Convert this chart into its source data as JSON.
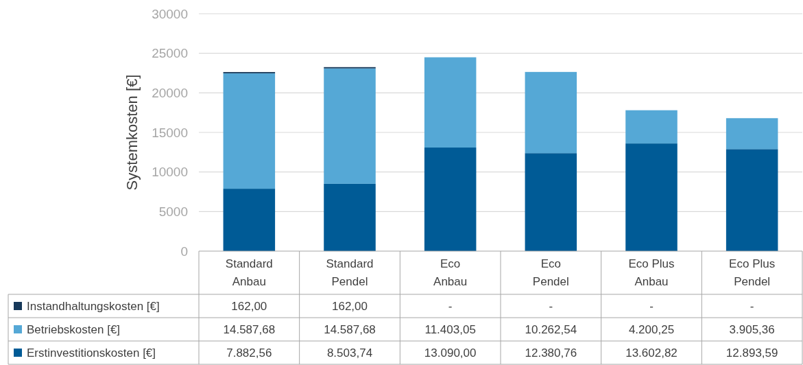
{
  "chart_data": {
    "type": "bar",
    "stacked": true,
    "ylabel": "Systemkosten [€]",
    "categories": [
      "Standard Anbau",
      "Standard Pendel",
      "Eco Anbau",
      "Eco Pendel",
      "Eco Plus Anbau",
      "Eco Plus Pendel"
    ],
    "series": [
      {
        "name": "Erstinvestitionskosten [€]",
        "color": "#005b96",
        "values": [
          7882.56,
          8503.74,
          13090.0,
          12380.76,
          13602.82,
          12893.59
        ],
        "value_labels": [
          "7.882,56",
          "8.503,74",
          "13.090,00",
          "12.380,76",
          "13.602,82",
          "12.893,59"
        ]
      },
      {
        "name": "Betriebskosten [€]",
        "color": "#55a8d6",
        "values": [
          14587.68,
          14587.68,
          11403.05,
          10262.54,
          4200.25,
          3905.36
        ],
        "value_labels": [
          "14.587,68",
          "14.587,68",
          "11.403,05",
          "10.262,54",
          "4.200,25",
          "3.905,36"
        ]
      },
      {
        "name": "Instandhaltungskosten [€]",
        "color": "#17395a",
        "values": [
          162,
          162,
          null,
          null,
          null,
          null
        ],
        "value_labels": [
          "162,00",
          "162,00",
          "-",
          "-",
          "-",
          "-"
        ]
      }
    ],
    "ylim": [
      0,
      30000
    ],
    "yticks": [
      0,
      5000,
      10000,
      15000,
      20000,
      25000,
      30000
    ],
    "grid": "y",
    "legend": "bottom"
  }
}
